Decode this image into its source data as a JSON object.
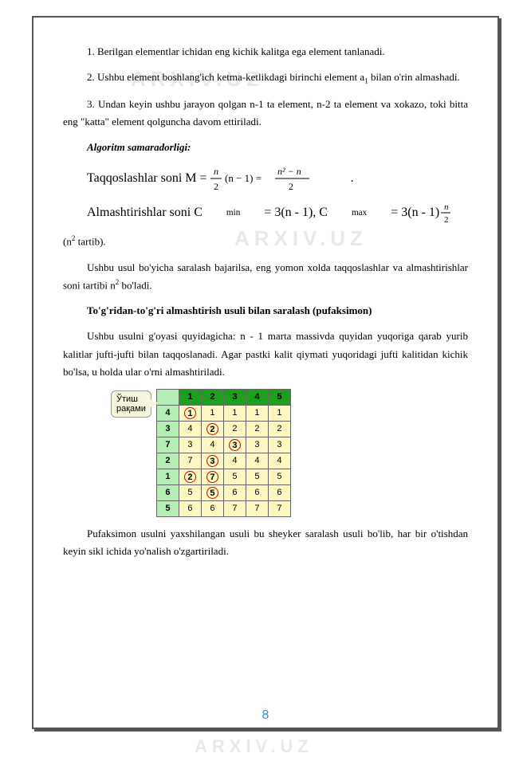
{
  "watermark": "ARXIV.UZ",
  "paragraphs": {
    "p1": "1. Berilgan elementlar ichidan eng kichik kalitga ega element tanlanadi.",
    "p2_part1": "2. Ushbu element boshlang'ich ketma-ketlikdagi birinchi element a",
    "p2_sub": "1",
    "p2_part2": " bilan o'rin almashadi.",
    "p3": "3. Undan keyin ushbu jarayon qolgan n-1 ta element,  n-2 ta element va xokazo, toki bitta eng \"katta\" element qolguncha davom ettiriladi.",
    "p4": "Algoritm samaradorligi:",
    "taqqos_label": "Taqqoslashlar soni M = ",
    "almash_label_1": "Almashtirishlar soni C",
    "almash_min": "min",
    "almash_eq1": " = 3(n - 1), C",
    "almash_max": "max",
    "almash_eq2": " = 3(n - 1) ",
    "almash_tartib_1": "(n",
    "almash_tartib_sup": "2",
    "almash_tartib_2": " tartib).",
    "p5_part1": "Ushbu usul bo'yicha saralash bajarilsa, eng yomon xolda taqqoslashlar va almashtirishlar soni tartibi n",
    "p5_sup": "2",
    "p5_part2": " bo'ladi.",
    "heading": "To'g'ridan-to'g'ri almashtirish usuli bilan saralash (pufaksimon)",
    "p6": "Ushbu usulni g'oyasi quyidagicha: n - 1 marta massivda quyidan yuqoriga qarab yurib kalitlar jufti-jufti bilan taqqoslanadi. Agar pastki kalit qiymati yuqoridagi jufti kalitidan kichik bo'lsa, u holda ular o'rni almashtiriladi.",
    "p7": "Pufaksimon usulni yaxshilangan usuli bu sheyker saralash usuli bo'lib, har bir o'tishdan keyin sikl ichida yo'nalish o'zgartiriladi."
  },
  "formula_main": {
    "lhs_num": "n",
    "lhs_den": "2",
    "mid": "(n − 1) =",
    "rhs_num": "n² − n",
    "rhs_den": "2"
  },
  "formula_small": {
    "num": "n",
    "den": "2"
  },
  "callout": "Ўтиш\nрақами",
  "table": {
    "header_bg": "#1aa01a",
    "label_bg": "#b4f0b4",
    "cell_bg": "#fff7c0",
    "circle_color": "#c00",
    "headers": [
      "1",
      "2",
      "3",
      "4",
      "5"
    ],
    "rows": [
      {
        "label": "4",
        "cells": [
          "1",
          "1",
          "1",
          "1"
        ],
        "circled": [
          0
        ]
      },
      {
        "label": "3",
        "cells": [
          "4",
          "2",
          "2",
          "2"
        ],
        "circled": [
          1
        ]
      },
      {
        "label": "7",
        "cells": [
          "3",
          "4",
          "3",
          "3"
        ],
        "circled": [
          2
        ]
      },
      {
        "label": "2",
        "cells": [
          "7",
          "3",
          "4",
          "4"
        ],
        "circled": [
          1
        ]
      },
      {
        "label": "1",
        "cells": [
          "2",
          "7",
          "5",
          "5"
        ],
        "circled": [
          0,
          1
        ]
      },
      {
        "label": "6",
        "cells": [
          "5",
          "5",
          "6",
          "6"
        ],
        "circled": [
          1
        ]
      },
      {
        "label": "5",
        "cells": [
          "6",
          "6",
          "7",
          "7"
        ],
        "circled": []
      }
    ]
  },
  "page_number": "8",
  "colors": {
    "frame": "#555555",
    "watermark": "#e8e8e8",
    "page_num": "#2299dd",
    "text": "#000000"
  }
}
